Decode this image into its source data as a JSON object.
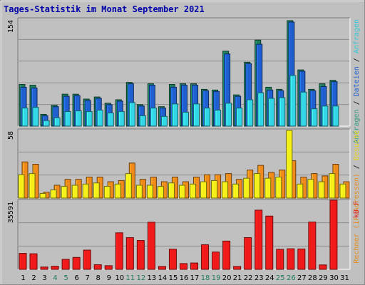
{
  "chart_data": {
    "type": "bar",
    "title": "Tages-Statistik im Monat September 2021",
    "categories": [
      "1",
      "2",
      "3",
      "4",
      "5",
      "6",
      "7",
      "8",
      "9",
      "10",
      "11",
      "12",
      "13",
      "14",
      "15",
      "16",
      "17",
      "18",
      "19",
      "20",
      "21",
      "22",
      "23",
      "24",
      "25",
      "26",
      "27",
      "28",
      "29",
      "30",
      "31"
    ],
    "weekend_days": [
      "4",
      "5",
      "11",
      "12",
      "18",
      "19",
      "25",
      "26"
    ],
    "panels": [
      {
        "id": "requests",
        "ymax": 154,
        "ymax_label": "154",
        "ylabel_parts": [
          {
            "text": "Anfragen",
            "color": "#33997f"
          },
          {
            "text": " / ",
            "color": "#000000"
          },
          {
            "text": "Dateien",
            "color": "#1f5fcf"
          },
          {
            "text": " / ",
            "color": "#000000"
          },
          {
            "text": "Anfragen",
            "color": "#33c9d9"
          }
        ],
        "series": [
          {
            "name": "Anfragen",
            "color": "#1e7f5a",
            "values": [
              60,
              59,
              17,
              30,
              46,
              46,
              39,
              42,
              33,
              38,
              63,
              31,
              61,
              28,
              60,
              61,
              61,
              53,
              52,
              108,
              45,
              92,
              124,
              56,
              53,
              152,
              81,
              53,
              61,
              66,
              0
            ]
          },
          {
            "name": "Dateien",
            "color": "#1f5fcf",
            "values": [
              56,
              55,
              15,
              28,
              43,
              44,
              37,
              40,
              31,
              36,
              61,
              29,
              59,
              26,
              56,
              59,
              59,
              51,
              50,
              104,
              43,
              90,
              118,
              52,
              51,
              150,
              79,
              51,
              57,
              64,
              0
            ]
          },
          {
            "name": "Anfragen",
            "color": "#33d6e6",
            "values": [
              26,
              27,
              8,
              12,
              21,
              22,
              21,
              23,
              19,
              21,
              34,
              15,
              26,
              14,
              32,
              20,
              32,
              26,
              23,
              33,
              26,
              38,
              48,
              40,
              41,
              73,
              49,
              25,
              29,
              29,
              0
            ]
          }
        ]
      },
      {
        "id": "hosts",
        "ymax": 58,
        "ymax_label": "58",
        "ylabel_parts": [
          {
            "text": "Rechner (IP-Adressen)",
            "color": "#e38c1a"
          },
          {
            "text": " / ",
            "color": "#000000"
          },
          {
            "text": "Besuche",
            "color": "#e6d61a"
          }
        ],
        "series": [
          {
            "name": "Rechner (IP-Adressen)",
            "color": "#f08a1a",
            "values": [
              31,
              29,
              5,
              11,
              16,
              16,
              18,
              18,
              14,
              15,
              30,
              16,
              18,
              14,
              18,
              14,
              18,
              20,
              20,
              21,
              16,
              24,
              28,
              22,
              24,
              32,
              18,
              21,
              19,
              29,
              14
            ]
          },
          {
            "name": "Besuche",
            "color": "#f5ef1a",
            "values": [
              20,
              21,
              4,
              7,
              10,
              11,
              12,
              13,
              10,
              12,
              21,
              11,
              11,
              10,
              13,
              11,
              12,
              14,
              15,
              14,
              12,
              17,
              21,
              17,
              18,
              58,
              12,
              16,
              14,
              21,
              12
            ]
          }
        ]
      },
      {
        "id": "kbytes",
        "ymax": 35591,
        "ymax_label": "35591",
        "ylabel_parts": [
          {
            "text": "kB F",
            "color": "#e01a1a"
          }
        ],
        "series": [
          {
            "name": "kB F",
            "color": "#f01a1a",
            "values": [
              8300,
              8100,
              1200,
              1600,
              5200,
              6200,
              10000,
              2400,
              1900,
              19000,
              16500,
              15000,
              24500,
              1500,
              10500,
              3000,
              3300,
              12800,
              9000,
              14700,
              1500,
              16500,
              30800,
              27700,
              10400,
              10700,
              10600,
              24600,
              2300,
              36000,
              0
            ]
          }
        ]
      }
    ]
  }
}
